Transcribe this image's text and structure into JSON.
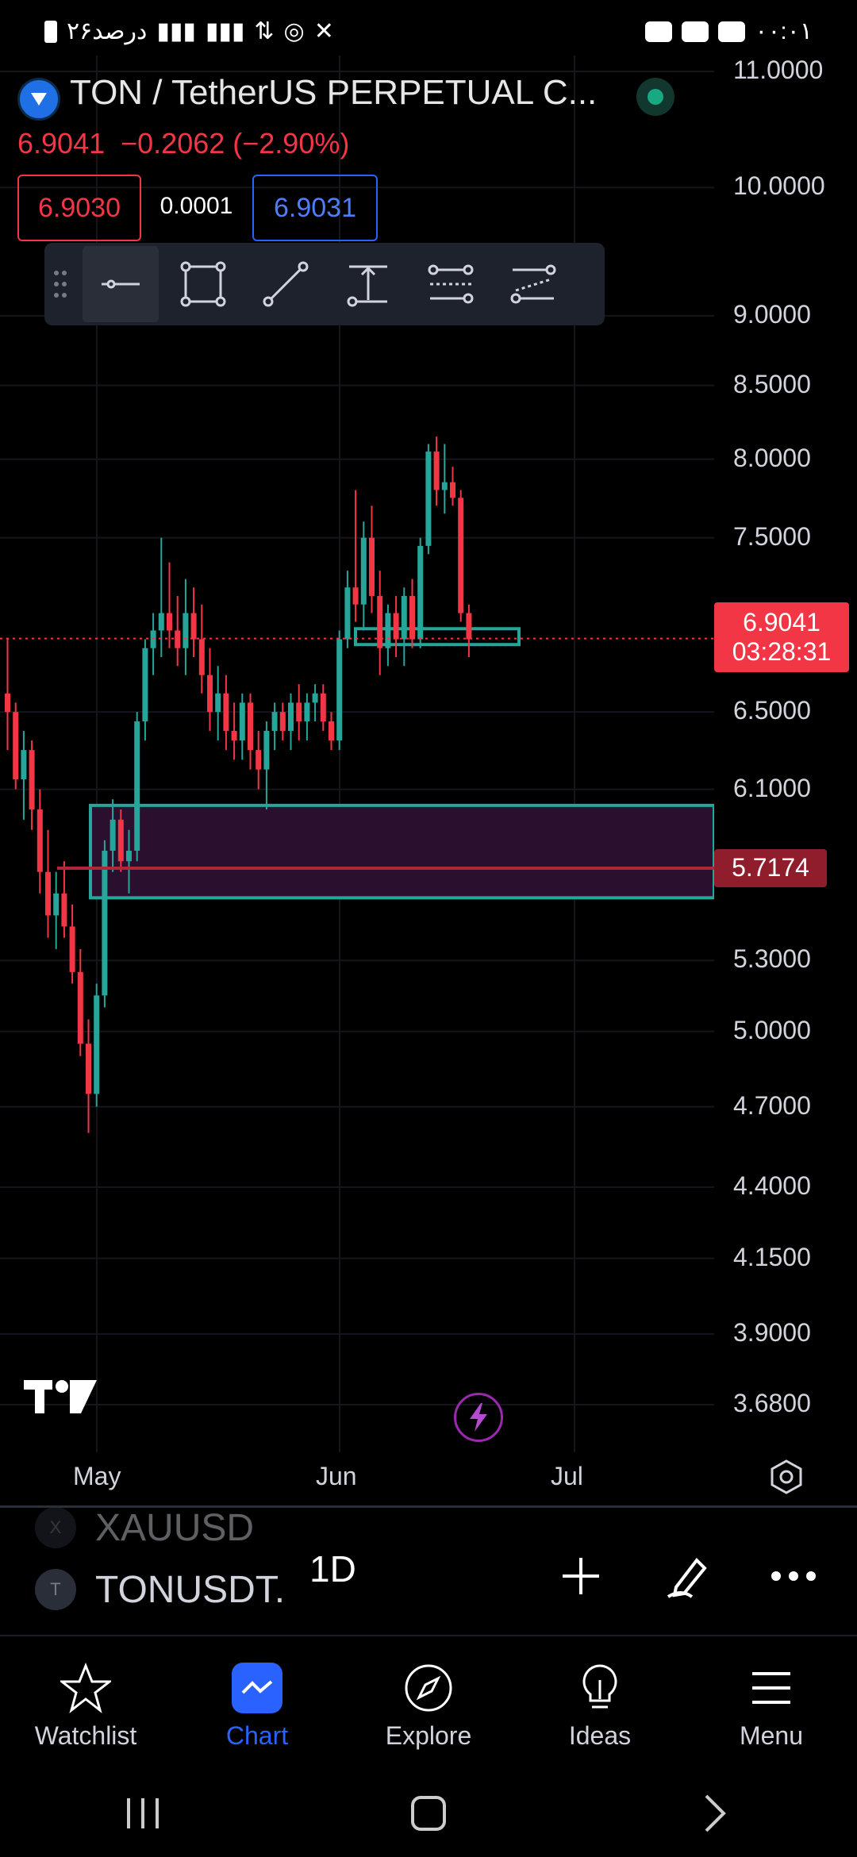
{
  "status_bar": {
    "left_text": "۲۶درصد",
    "time": "۰۰:۰۱"
  },
  "header": {
    "symbol_title": "TON / TetherUS PERPETUAL C...",
    "last_price": "6.9041",
    "change": "−0.2062 (−2.90%)",
    "bid": "6.9030",
    "spread": "0.0001",
    "ask": "6.9031"
  },
  "toolbar": {
    "tools": [
      "horizontal-line",
      "rectangle",
      "trend-line",
      "price-range",
      "parallel-channel",
      "regression-channel"
    ],
    "active": "horizontal-line"
  },
  "price_scale": {
    "labels": [
      "11.0000",
      "10.0000",
      "9.0000",
      "8.5000",
      "8.0000",
      "7.5000",
      "6.5000",
      "6.1000",
      "5.3000",
      "5.0000",
      "4.7000",
      "4.4000",
      "4.1500",
      "3.9000",
      "3.6800"
    ],
    "current_price": "6.9041",
    "countdown": "03:28:31",
    "line_price": "5.7174"
  },
  "time_scale": {
    "labels": [
      "May",
      "Jun",
      "Jul"
    ]
  },
  "colors": {
    "up": "#26a69a",
    "down": "#f23645",
    "accent": "#2962ff",
    "zone_fill": "#2a0f2e"
  },
  "symbols": [
    {
      "badge": "X",
      "name": "XAUUSD"
    },
    {
      "badge": "T",
      "name": "TONUSDT."
    }
  ],
  "interval": "1D",
  "actions": [
    "plus-icon",
    "draw-pen-icon",
    "more-icon"
  ],
  "nav": [
    {
      "label": "Watchlist",
      "icon": "star-icon"
    },
    {
      "label": "Chart",
      "icon": "chart-icon",
      "active": true
    },
    {
      "label": "Explore",
      "icon": "compass-icon"
    },
    {
      "label": "Ideas",
      "icon": "lightbulb-icon"
    },
    {
      "label": "Menu",
      "icon": "menu-icon"
    }
  ],
  "chart_data": {
    "type": "candlestick",
    "title": "TON / TetherUS PERPETUAL C...",
    "interval": "1D",
    "x_labels": [
      "May",
      "Jun",
      "Jul"
    ],
    "y_labels": [
      "11.0000",
      "10.0000",
      "9.0000",
      "8.5000",
      "8.0000",
      "7.5000",
      "6.5000",
      "6.1000",
      "5.3000",
      "5.0000",
      "4.7000",
      "4.4000",
      "4.1500",
      "3.9000",
      "3.6800"
    ],
    "scale": "log",
    "candles": [
      [
        6.6,
        6.9,
        6.3,
        6.5
      ],
      [
        6.5,
        6.55,
        6.1,
        6.15
      ],
      [
        6.15,
        6.4,
        5.95,
        6.3
      ],
      [
        6.3,
        6.35,
        5.9,
        6.0
      ],
      [
        6.0,
        6.1,
        5.6,
        5.7
      ],
      [
        5.7,
        5.9,
        5.4,
        5.5
      ],
      [
        5.5,
        5.7,
        5.35,
        5.6
      ],
      [
        5.6,
        5.75,
        5.4,
        5.45
      ],
      [
        5.45,
        5.55,
        5.2,
        5.25
      ],
      [
        5.25,
        5.35,
        4.9,
        4.95
      ],
      [
        4.95,
        5.05,
        4.6,
        4.75
      ],
      [
        4.75,
        5.2,
        4.7,
        5.15
      ],
      [
        5.15,
        5.85,
        5.1,
        5.8
      ],
      [
        5.8,
        6.05,
        5.7,
        5.95
      ],
      [
        5.95,
        6.0,
        5.7,
        5.75
      ],
      [
        5.75,
        5.9,
        5.6,
        5.8
      ],
      [
        5.8,
        6.5,
        5.75,
        6.45
      ],
      [
        6.45,
        6.9,
        6.35,
        6.85
      ],
      [
        6.85,
        7.05,
        6.7,
        6.95
      ],
      [
        6.95,
        7.5,
        6.8,
        7.05
      ],
      [
        7.05,
        7.35,
        6.85,
        6.95
      ],
      [
        6.95,
        7.15,
        6.75,
        6.85
      ],
      [
        6.85,
        7.25,
        6.7,
        7.05
      ],
      [
        7.05,
        7.2,
        6.8,
        6.9
      ],
      [
        6.9,
        7.1,
        6.6,
        6.7
      ],
      [
        6.7,
        6.85,
        6.4,
        6.5
      ],
      [
        6.5,
        6.75,
        6.35,
        6.6
      ],
      [
        6.6,
        6.7,
        6.3,
        6.4
      ],
      [
        6.4,
        6.55,
        6.25,
        6.35
      ],
      [
        6.35,
        6.6,
        6.25,
        6.55
      ],
      [
        6.55,
        6.6,
        6.2,
        6.3
      ],
      [
        6.3,
        6.4,
        6.1,
        6.2
      ],
      [
        6.2,
        6.45,
        6.0,
        6.4
      ],
      [
        6.4,
        6.55,
        6.3,
        6.5
      ],
      [
        6.5,
        6.55,
        6.35,
        6.4
      ],
      [
        6.4,
        6.6,
        6.3,
        6.55
      ],
      [
        6.55,
        6.65,
        6.35,
        6.45
      ],
      [
        6.45,
        6.6,
        6.35,
        6.55
      ],
      [
        6.55,
        6.65,
        6.45,
        6.6
      ],
      [
        6.6,
        6.65,
        6.4,
        6.45
      ],
      [
        6.45,
        6.5,
        6.3,
        6.35
      ],
      [
        6.35,
        6.95,
        6.3,
        6.9
      ],
      [
        6.9,
        7.3,
        6.85,
        7.2
      ],
      [
        7.2,
        7.8,
        7.0,
        7.1
      ],
      [
        7.1,
        7.6,
        6.95,
        7.5
      ],
      [
        7.5,
        7.7,
        7.05,
        7.15
      ],
      [
        7.15,
        7.3,
        6.7,
        6.85
      ],
      [
        6.85,
        7.1,
        6.75,
        7.05
      ],
      [
        7.05,
        7.15,
        6.8,
        6.9
      ],
      [
        6.9,
        7.2,
        6.75,
        7.15
      ],
      [
        7.15,
        7.25,
        6.85,
        6.9
      ],
      [
        6.9,
        7.5,
        6.85,
        7.45
      ],
      [
        7.45,
        8.1,
        7.4,
        8.05
      ],
      [
        8.05,
        8.15,
        7.7,
        7.8
      ],
      [
        7.8,
        8.1,
        7.65,
        7.85
      ],
      [
        7.85,
        7.95,
        7.7,
        7.75
      ],
      [
        7.75,
        7.8,
        7.0,
        7.05
      ],
      [
        7.05,
        7.1,
        6.8,
        6.9
      ]
    ],
    "current_price": 6.9041,
    "horizontal_line": 5.7174,
    "zones": [
      {
        "from": 5.58,
        "to": 6.02,
        "style": "rectangle"
      },
      {
        "from": 6.87,
        "to": 6.96,
        "style": "rectangle"
      }
    ]
  }
}
